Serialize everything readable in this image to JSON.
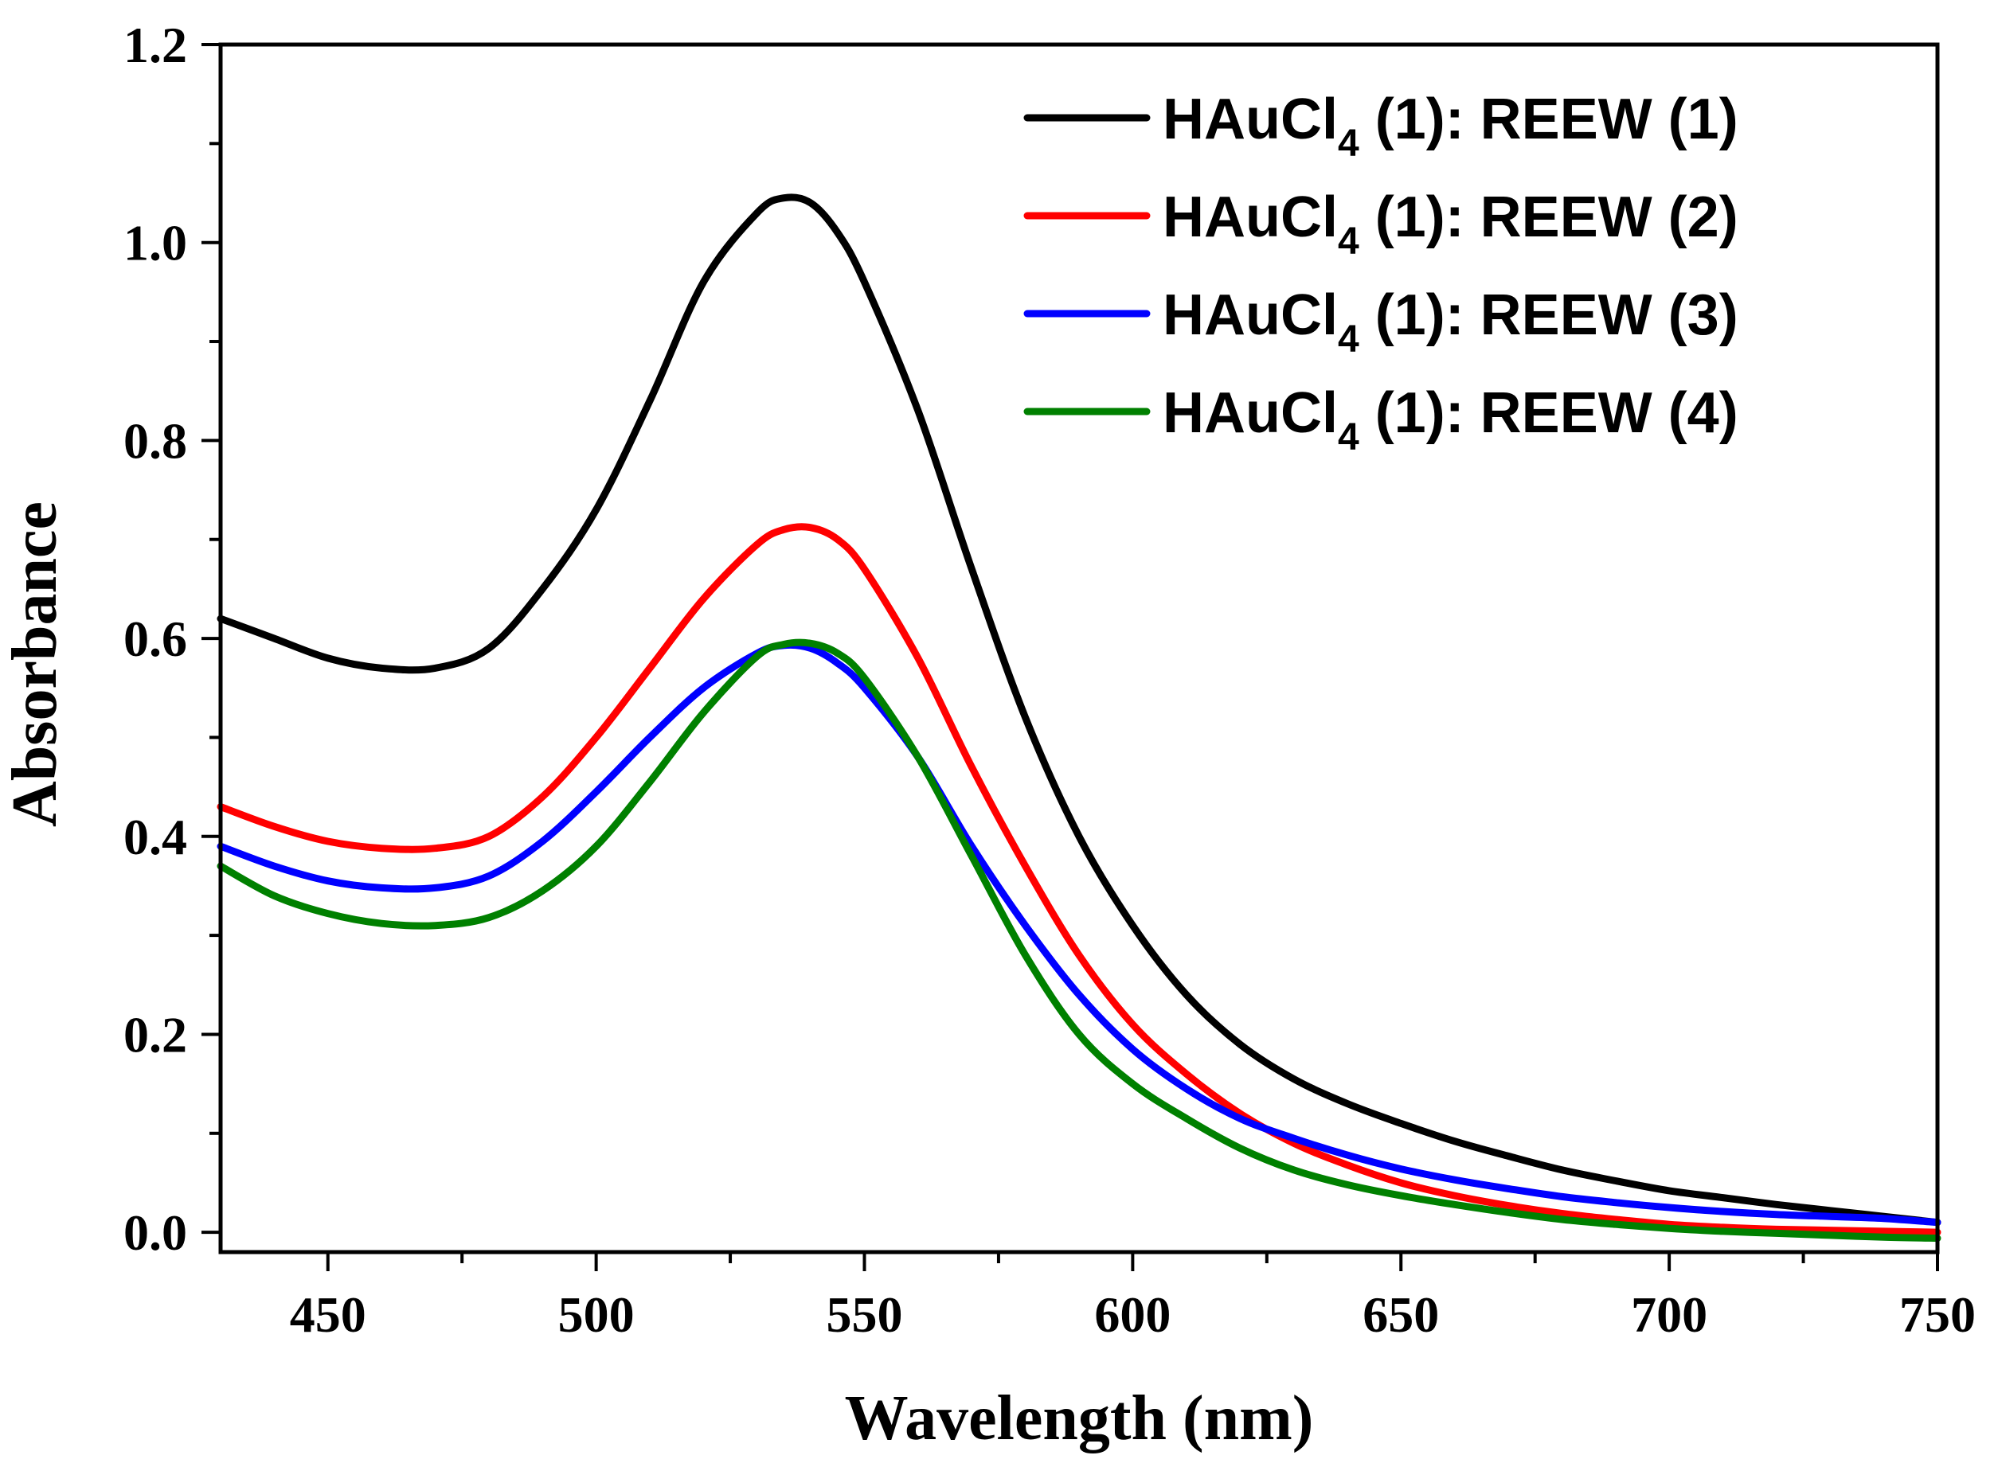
{
  "chart_data": {
    "type": "line",
    "title": "",
    "xlabel": "Wavelength (nm)",
    "ylabel": "Absorbance",
    "xlim": [
      430,
      750
    ],
    "ylim": [
      -0.02,
      1.2
    ],
    "xticks": [
      450,
      500,
      550,
      600,
      650,
      700,
      750
    ],
    "xtick_labels": [
      "450",
      "500",
      "550",
      "600",
      "650",
      "700",
      "750"
    ],
    "yticks": [
      0.0,
      0.2,
      0.4,
      0.6,
      0.8,
      1.0,
      1.2
    ],
    "ytick_labels": [
      "0.0",
      "0.2",
      "0.4",
      "0.6",
      "0.8",
      "1.0",
      "1.2"
    ],
    "legend_position": "top-right",
    "grid": false,
    "series": [
      {
        "name": "HAuCl4 (1): REEW (1)",
        "legend": {
          "prefix": "HAuCl",
          "subscript": "4",
          "suffix": " (1): REEW (1)"
        },
        "color": "#000000",
        "x": [
          430,
          440,
          450,
          460,
          470,
          480,
          490,
          500,
          510,
          520,
          530,
          535,
          540,
          545,
          550,
          560,
          570,
          580,
          590,
          600,
          610,
          620,
          630,
          640,
          650,
          660,
          670,
          680,
          690,
          700,
          710,
          720,
          730,
          740,
          750
        ],
        "values": [
          0.62,
          0.6,
          0.58,
          0.57,
          0.57,
          0.59,
          0.65,
          0.73,
          0.84,
          0.96,
          1.03,
          1.045,
          1.04,
          1.01,
          0.96,
          0.83,
          0.67,
          0.52,
          0.4,
          0.31,
          0.24,
          0.19,
          0.155,
          0.13,
          0.11,
          0.092,
          0.077,
          0.063,
          0.052,
          0.042,
          0.035,
          0.028,
          0.022,
          0.016,
          0.01
        ]
      },
      {
        "name": "HAuCl4 (1): REEW (2)",
        "legend": {
          "prefix": "HAuCl",
          "subscript": "4",
          "suffix": " (1): REEW (2)"
        },
        "color": "#ff0000",
        "x": [
          430,
          440,
          450,
          460,
          470,
          480,
          490,
          500,
          510,
          520,
          530,
          535,
          540,
          545,
          550,
          560,
          570,
          580,
          590,
          600,
          610,
          620,
          630,
          640,
          650,
          660,
          670,
          680,
          690,
          700,
          710,
          720,
          730,
          740,
          750
        ],
        "values": [
          0.43,
          0.41,
          0.395,
          0.388,
          0.388,
          0.4,
          0.44,
          0.5,
          0.57,
          0.64,
          0.695,
          0.71,
          0.712,
          0.7,
          0.67,
          0.58,
          0.47,
          0.37,
          0.28,
          0.21,
          0.16,
          0.12,
          0.09,
          0.068,
          0.05,
          0.037,
          0.027,
          0.019,
          0.013,
          0.008,
          0.005,
          0.003,
          0.002,
          0.001,
          0.0
        ]
      },
      {
        "name": "HAuCl4 (1): REEW (3)",
        "legend": {
          "prefix": "HAuCl",
          "subscript": "4",
          "suffix": " (1): REEW (3)"
        },
        "color": "#0000ff",
        "x": [
          430,
          440,
          450,
          460,
          470,
          480,
          490,
          500,
          510,
          520,
          530,
          535,
          540,
          545,
          550,
          560,
          570,
          580,
          590,
          600,
          610,
          620,
          630,
          640,
          650,
          660,
          670,
          680,
          690,
          700,
          710,
          720,
          730,
          740,
          750
        ],
        "values": [
          0.39,
          0.37,
          0.355,
          0.348,
          0.348,
          0.36,
          0.395,
          0.445,
          0.5,
          0.55,
          0.585,
          0.593,
          0.59,
          0.575,
          0.55,
          0.48,
          0.39,
          0.31,
          0.24,
          0.185,
          0.145,
          0.115,
          0.095,
          0.078,
          0.064,
          0.053,
          0.044,
          0.036,
          0.03,
          0.025,
          0.021,
          0.018,
          0.016,
          0.014,
          0.01
        ]
      },
      {
        "name": "HAuCl4 (1): REEW (4)",
        "legend": {
          "prefix": "HAuCl",
          "subscript": "4",
          "suffix": " (1): REEW (4)"
        },
        "color": "#008000",
        "x": [
          430,
          440,
          450,
          460,
          470,
          480,
          490,
          500,
          510,
          520,
          530,
          535,
          540,
          545,
          550,
          560,
          570,
          580,
          590,
          600,
          610,
          620,
          630,
          640,
          650,
          660,
          670,
          680,
          690,
          700,
          710,
          720,
          730,
          740,
          750
        ],
        "values": [
          0.37,
          0.34,
          0.322,
          0.312,
          0.31,
          0.318,
          0.345,
          0.39,
          0.455,
          0.525,
          0.582,
          0.594,
          0.595,
          0.585,
          0.56,
          0.48,
          0.38,
          0.28,
          0.2,
          0.15,
          0.115,
          0.085,
          0.063,
          0.048,
          0.037,
          0.028,
          0.02,
          0.013,
          0.008,
          0.004,
          0.001,
          -0.001,
          -0.003,
          -0.005,
          -0.006
        ]
      }
    ]
  }
}
